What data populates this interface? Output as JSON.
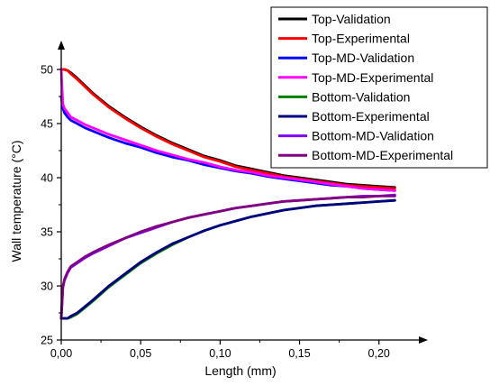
{
  "chart_data": {
    "type": "line",
    "title": "",
    "xlabel": "Length (mm)",
    "ylabel": "Wall temperature (°C)",
    "xlim": [
      0,
      0.22
    ],
    "ylim": [
      25,
      52.5
    ],
    "x_ticks": [
      "0,00",
      "0,05",
      "0,10",
      "0,15",
      "0,20"
    ],
    "y_ticks": [
      "25",
      "30",
      "35",
      "40",
      "45",
      "50"
    ],
    "grid": false,
    "legend_position": "top-right",
    "x": [
      0,
      0.001,
      0.002,
      0.004,
      0.006,
      0.01,
      0.015,
      0.02,
      0.03,
      0.04,
      0.05,
      0.06,
      0.07,
      0.08,
      0.09,
      0.1,
      0.11,
      0.12,
      0.13,
      0.14,
      0.15,
      0.16,
      0.17,
      0.18,
      0.19,
      0.2,
      0.21
    ],
    "series": [
      {
        "name": "Top-Validation",
        "color": "#000000",
        "values": [
          50.0,
          50.0,
          50.0,
          49.9,
          49.7,
          49.2,
          48.5,
          47.8,
          46.6,
          45.6,
          44.7,
          43.9,
          43.2,
          42.6,
          42.0,
          41.6,
          41.1,
          40.8,
          40.5,
          40.2,
          40.0,
          39.8,
          39.6,
          39.4,
          39.3,
          39.2,
          39.1
        ]
      },
      {
        "name": "Top-Experimental",
        "color": "#ff0000",
        "values": [
          50.0,
          50.0,
          50.0,
          49.9,
          49.6,
          49.1,
          48.4,
          47.7,
          46.5,
          45.5,
          44.6,
          43.8,
          43.1,
          42.5,
          41.9,
          41.5,
          41.0,
          40.7,
          40.4,
          40.1,
          39.9,
          39.7,
          39.5,
          39.3,
          39.2,
          39.1,
          39.0
        ]
      },
      {
        "name": "Top-MD-Validation",
        "color": "#0000ff",
        "values": [
          47.5,
          46.4,
          46.0,
          45.6,
          45.3,
          45.0,
          44.6,
          44.3,
          43.7,
          43.2,
          42.8,
          42.3,
          41.9,
          41.6,
          41.2,
          40.9,
          40.6,
          40.4,
          40.1,
          39.9,
          39.7,
          39.5,
          39.3,
          39.2,
          39.0,
          38.9,
          38.8
        ]
      },
      {
        "name": "Top-MD-Experimental",
        "color": "#ff00ff",
        "values": [
          50.0,
          46.8,
          46.4,
          46.0,
          45.6,
          45.3,
          44.9,
          44.6,
          44.0,
          43.5,
          43.0,
          42.5,
          42.1,
          41.7,
          41.4,
          41.0,
          40.7,
          40.5,
          40.2,
          40.0,
          39.8,
          39.6,
          39.4,
          39.2,
          39.0,
          38.9,
          38.8
        ]
      },
      {
        "name": "Bottom-Validation",
        "color": "#008000",
        "values": [
          27.0,
          27.0,
          27.0,
          27.0,
          27.1,
          27.4,
          28.0,
          28.6,
          29.9,
          31.0,
          32.1,
          33.0,
          33.8,
          34.5,
          35.1,
          35.6,
          36.0,
          36.4,
          36.7,
          37.0,
          37.2,
          37.4,
          37.5,
          37.6,
          37.7,
          37.8,
          37.9
        ]
      },
      {
        "name": "Bottom-Experimental",
        "color": "#000080",
        "values": [
          27.0,
          27.0,
          27.0,
          27.0,
          27.2,
          27.5,
          28.1,
          28.7,
          30.0,
          31.1,
          32.2,
          33.1,
          33.9,
          34.5,
          35.1,
          35.6,
          36.0,
          36.4,
          36.7,
          37.0,
          37.2,
          37.4,
          37.5,
          37.6,
          37.7,
          37.8,
          37.9
        ]
      },
      {
        "name": "Bottom-MD-Validation",
        "color": "#8000ff",
        "values": [
          27.0,
          29.8,
          30.5,
          31.2,
          31.7,
          32.1,
          32.6,
          33.0,
          33.7,
          34.4,
          34.9,
          35.4,
          35.9,
          36.3,
          36.6,
          36.9,
          37.2,
          37.4,
          37.6,
          37.8,
          37.9,
          38.0,
          38.1,
          38.2,
          38.3,
          38.3,
          38.4
        ]
      },
      {
        "name": "Bottom-MD-Experimental",
        "color": "#800080",
        "values": [
          27.0,
          29.9,
          30.6,
          31.3,
          31.8,
          32.2,
          32.7,
          33.1,
          33.8,
          34.4,
          35.0,
          35.5,
          35.9,
          36.3,
          36.6,
          36.9,
          37.2,
          37.4,
          37.6,
          37.8,
          37.9,
          38.0,
          38.1,
          38.2,
          38.2,
          38.3,
          38.3
        ]
      }
    ]
  }
}
